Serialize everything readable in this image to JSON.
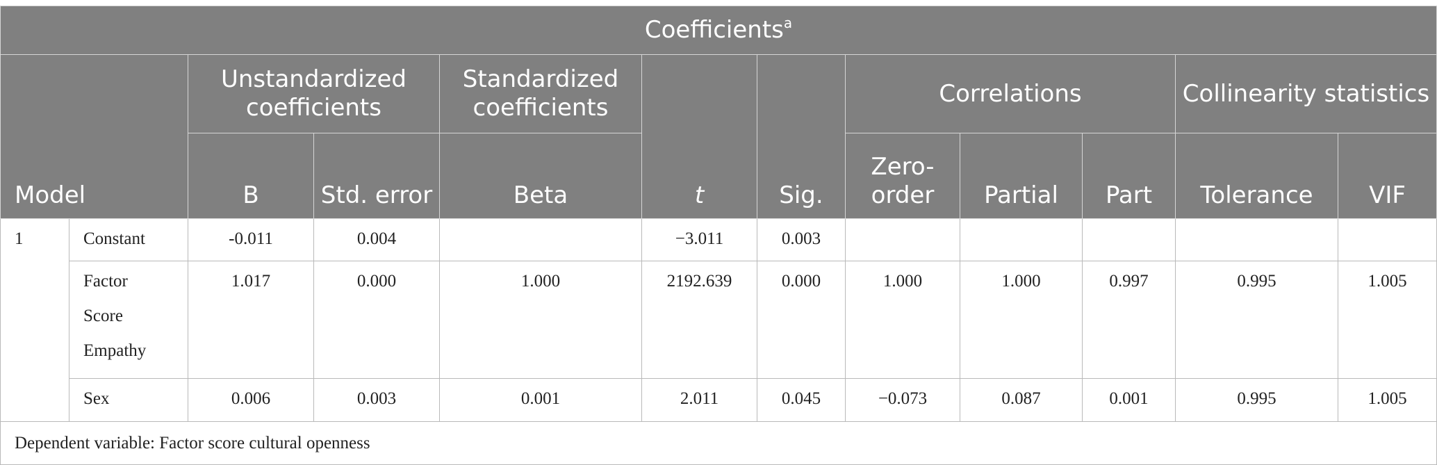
{
  "table": {
    "title": "Coefficients",
    "title_superscript": "a",
    "headers": {
      "model": "Model",
      "unstandardized": "Unstandardized coefficients",
      "standardized": "Standardized coefficients",
      "t": "t",
      "sig": "Sig.",
      "correlations": "Correlations",
      "collinearity": "Collinearity statistics",
      "b": "B",
      "std_error": "Std. error",
      "beta": "Beta",
      "zero_order": "Zero-order",
      "partial": "Partial",
      "part": "Part",
      "tolerance": "Tolerance",
      "vif": "VIF"
    },
    "rows": [
      {
        "model": "1",
        "predictor": "Constant",
        "b": "-0.011",
        "std_error": "0.004",
        "beta": "",
        "t": "−3.011",
        "sig": "0.003",
        "zero_order": "",
        "partial": "",
        "part": "",
        "tolerance": "",
        "vif": ""
      },
      {
        "model": "",
        "predictor_lines": [
          "Factor",
          "Score",
          "Empathy"
        ],
        "b": "1.017",
        "std_error": "0.000",
        "beta": "1.000",
        "t": "2192.639",
        "sig": "0.000",
        "zero_order": "1.000",
        "partial": "1.000",
        "part": "0.997",
        "tolerance": "0.995",
        "vif": "1.005"
      },
      {
        "model": "",
        "predictor": "Sex",
        "b": "0.006",
        "std_error": "0.003",
        "beta": "0.001",
        "t": "2.011",
        "sig": "0.045",
        "zero_order": "−0.073",
        "partial": "0.087",
        "part": "0.001",
        "tolerance": "0.995",
        "vif": "1.005"
      }
    ],
    "footnote": "Dependent variable: Factor score cultural openness"
  }
}
